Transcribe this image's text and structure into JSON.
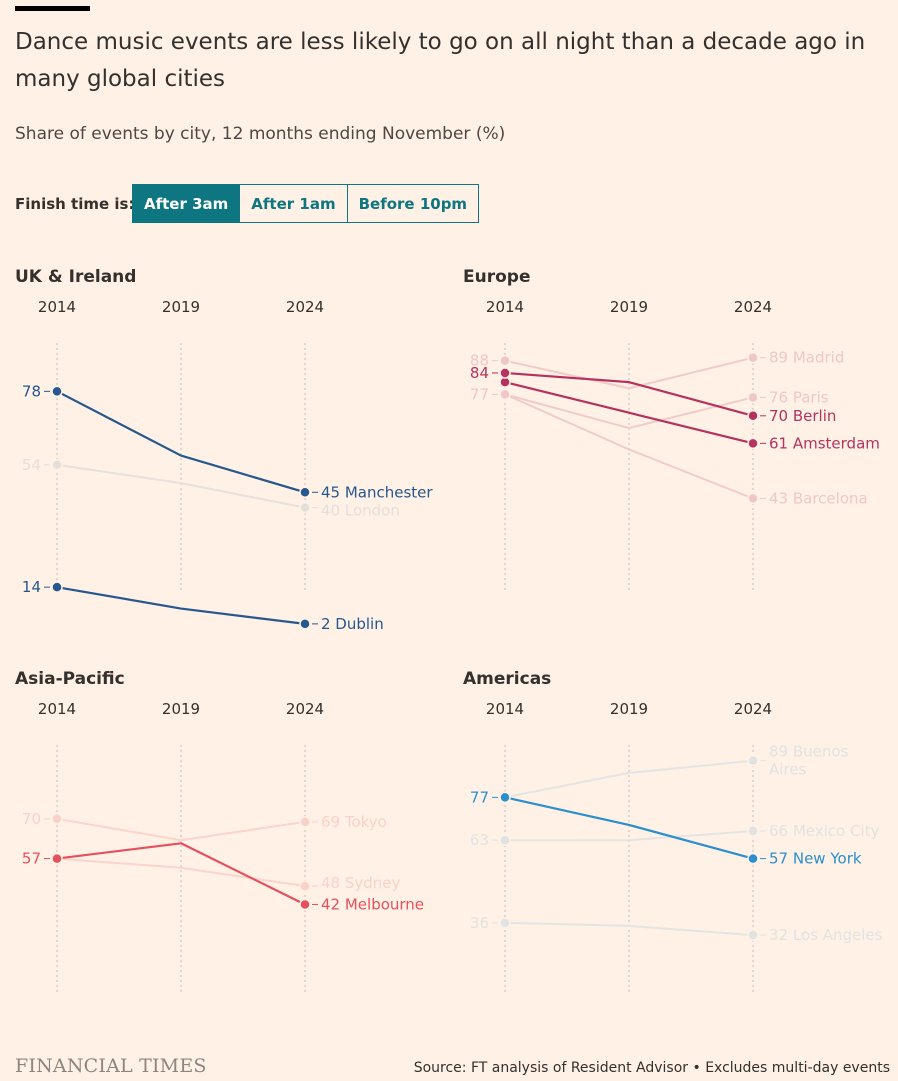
{
  "title": "Dance music events are less likely to go on all night than a decade ago in many global cities",
  "subtitle": "Share of events by city, 12 months ending November (%)",
  "filter": {
    "label": "Finish time is:",
    "options": [
      "After 3am",
      "After 1am",
      "Before 10pm"
    ],
    "selected": "After 3am"
  },
  "footer": {
    "logo": "FINANCIAL TIMES",
    "source": "Source: FT analysis of Resident Advisor • Excludes multi-day events"
  },
  "colors": {
    "background": "#fff1e5",
    "uk": "#26578e",
    "europe": "#b5325f",
    "asia": "#e4505d",
    "americas": "#2b8fce",
    "accent": "#0d7680"
  },
  "chart_data": [
    {
      "type": "line",
      "title": "UK & Ireland",
      "x": [
        "2014",
        "2019",
        "2024"
      ],
      "ylim": [
        0,
        100
      ],
      "series": [
        {
          "name": "London",
          "values": [
            54,
            48,
            40
          ],
          "highlight": false,
          "start_label": "54",
          "end_label": "40 London"
        },
        {
          "name": "Manchester",
          "values": [
            78,
            57,
            45
          ],
          "highlight": true,
          "start_label": "78",
          "end_label": "45 Manchester"
        },
        {
          "name": "Dublin",
          "values": [
            14,
            7,
            2
          ],
          "highlight": true,
          "start_label": "14",
          "end_label": "2 Dublin"
        }
      ]
    },
    {
      "type": "line",
      "title": "Europe",
      "x": [
        "2014",
        "2019",
        "2024"
      ],
      "ylim": [
        0,
        100
      ],
      "series": [
        {
          "name": "Madrid",
          "values": [
            88,
            79,
            89
          ],
          "highlight": false,
          "start_label": "88",
          "end_label": "89 Madrid"
        },
        {
          "name": "Paris",
          "values": [
            77,
            66,
            76
          ],
          "highlight": false,
          "start_label": "77",
          "end_label": "76 Paris"
        },
        {
          "name": "Barcelona",
          "values": [
            77,
            59,
            43
          ],
          "highlight": false,
          "start_label": "",
          "end_label": "43 Barcelona"
        },
        {
          "name": "Amsterdam",
          "values": [
            81,
            71,
            61
          ],
          "highlight": true,
          "start_label": "",
          "end_label": "61 Amsterdam"
        },
        {
          "name": "Berlin",
          "values": [
            84,
            81,
            70
          ],
          "highlight": true,
          "start_label": "84",
          "end_label": "70 Berlin"
        }
      ]
    },
    {
      "type": "line",
      "title": "Asia-Pacific",
      "x": [
        "2014",
        "2019",
        "2024"
      ],
      "ylim": [
        0,
        100
      ],
      "series": [
        {
          "name": "Tokyo",
          "values": [
            70,
            63,
            69
          ],
          "highlight": false,
          "start_label": "70",
          "end_label": "69 Tokyo"
        },
        {
          "name": "Sydney",
          "values": [
            57,
            54,
            48
          ],
          "highlight": false,
          "start_label": "",
          "end_label": "48 Sydney"
        },
        {
          "name": "Melbourne",
          "values": [
            57,
            62,
            42
          ],
          "highlight": true,
          "start_label": "57",
          "end_label": "42 Melbourne"
        }
      ]
    },
    {
      "type": "line",
      "title": "Americas",
      "x": [
        "2014",
        "2019",
        "2024"
      ],
      "ylim": [
        0,
        100
      ],
      "series": [
        {
          "name": "Buenos Aires",
          "values": [
            77,
            85,
            89
          ],
          "highlight": false,
          "start_label": "",
          "end_label": "89 Buenos Aires"
        },
        {
          "name": "Mexico City",
          "values": [
            63,
            63,
            66
          ],
          "highlight": false,
          "start_label": "63",
          "end_label": "66 Mexico City"
        },
        {
          "name": "Los Angeles",
          "values": [
            36,
            35,
            32
          ],
          "highlight": false,
          "start_label": "36",
          "end_label": "32 Los Angeles"
        },
        {
          "name": "New York",
          "values": [
            77,
            68,
            57
          ],
          "highlight": true,
          "start_label": "77",
          "end_label": "57 New York"
        }
      ]
    }
  ]
}
